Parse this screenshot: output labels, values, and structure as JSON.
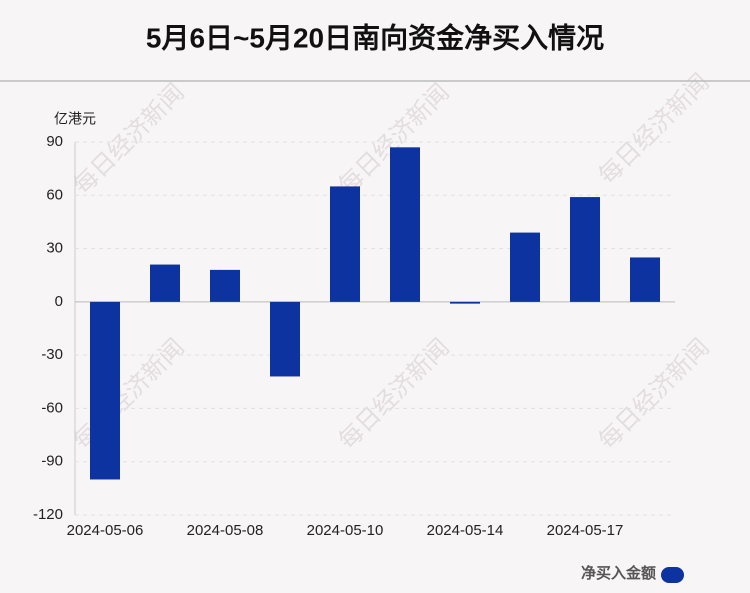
{
  "chart_data": {
    "type": "bar",
    "title": "5月6日~5月20日南向资金净买入情况",
    "y_axis_label": "亿港元",
    "watermark": "每日经济新闻",
    "categories": [
      "2024-05-06",
      null,
      "2024-05-08",
      null,
      "2024-05-10",
      null,
      "2024-05-14",
      null,
      "2024-05-17",
      null
    ],
    "series": [
      {
        "name": "净买入金额",
        "color": "#0d33a0",
        "values": [
          -100,
          21,
          18,
          -42,
          65,
          87,
          -1,
          39,
          59,
          25
        ]
      }
    ],
    "ylim": [
      -120,
      90
    ],
    "yticks": [
      -120,
      -90,
      -60,
      -30,
      0,
      30,
      60,
      90
    ],
    "grid": true,
    "legend": "bottom-right"
  }
}
